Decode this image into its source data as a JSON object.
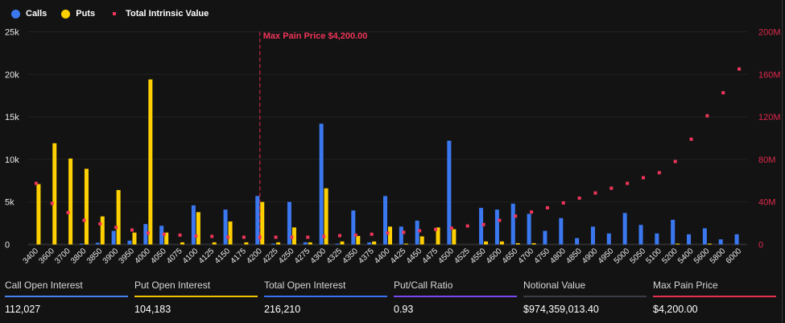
{
  "legend": {
    "calls": "Calls",
    "puts": "Puts",
    "tiv": "Total Intrinsic Value"
  },
  "colors": {
    "calls": "#3b78f0",
    "puts": "#ffd000",
    "tiv": "#ee3558",
    "grid": "#222222",
    "background": "#131313"
  },
  "chart_data": {
    "type": "bar",
    "categories": [
      "3400",
      "3600",
      "3700",
      "3800",
      "3850",
      "3900",
      "3950",
      "4000",
      "4050",
      "4075",
      "4100",
      "4125",
      "4150",
      "4175",
      "4200",
      "4225",
      "4250",
      "4275",
      "4300",
      "4325",
      "4350",
      "4375",
      "4400",
      "4425",
      "4450",
      "4475",
      "4500",
      "4525",
      "4550",
      "4600",
      "4650",
      "4700",
      "4750",
      "4800",
      "4850",
      "4900",
      "4950",
      "5000",
      "5050",
      "5100",
      "5200",
      "5400",
      "5600",
      "5800",
      "6000"
    ],
    "series": [
      {
        "name": "Calls",
        "axis": "left",
        "values": [
          0,
          0,
          0,
          0.1,
          0.2,
          1.6,
          0.45,
          2.4,
          2.2,
          0,
          4.6,
          0,
          4.1,
          0,
          5.7,
          0.1,
          5.0,
          0.25,
          14.2,
          0.1,
          4.0,
          0.25,
          5.7,
          2.1,
          2.8,
          0,
          12.2,
          0,
          4.3,
          4.1,
          4.8,
          3.6,
          1.6,
          3.1,
          0.75,
          2.1,
          1.3,
          3.7,
          2.3,
          1.3,
          2.9,
          1.2,
          1.9,
          0.6,
          1.2
        ]
      },
      {
        "name": "Puts",
        "axis": "left",
        "values": [
          7.1,
          11.9,
          10.1,
          8.9,
          3.3,
          6.4,
          1.4,
          19.4,
          1.4,
          0.25,
          3.8,
          0.25,
          2.7,
          0.25,
          5.0,
          0.25,
          2.0,
          0.25,
          6.6,
          0.35,
          1.0,
          0.35,
          2.1,
          0.1,
          0.95,
          2.0,
          1.8,
          0,
          0.35,
          0.35,
          0.15,
          0.15,
          0,
          0,
          0,
          0,
          0,
          0,
          0,
          0,
          0.1,
          0,
          0.1,
          0,
          0
        ]
      },
      {
        "name": "Total Intrinsic Value",
        "type": "scatter",
        "axis": "right",
        "values": [
          57.5,
          38.6,
          30,
          22.7,
          19.4,
          16,
          13.6,
          10.8,
          9.6,
          8.8,
          8,
          7.6,
          6.8,
          6.8,
          6.8,
          6.8,
          6.8,
          6.8,
          7.6,
          8.3,
          8.8,
          9.6,
          10.8,
          11.4,
          12.9,
          14.1,
          15.4,
          17.4,
          18.7,
          22.7,
          26.7,
          30.5,
          34.5,
          39.1,
          43.6,
          48.4,
          52.9,
          57.5,
          62.8,
          67.5,
          78,
          99,
          121,
          142.7,
          165
        ]
      }
    ],
    "left_axis": {
      "range": [
        0,
        25
      ],
      "unit": "k",
      "ticks": [
        "0",
        "5k",
        "10k",
        "15k",
        "20k",
        "25k"
      ]
    },
    "right_axis": {
      "range": [
        0,
        200
      ],
      "unit": "M",
      "ticks": [
        "0",
        "40M",
        "80M",
        "120M",
        "160M",
        "200M"
      ]
    },
    "grid": true,
    "legend_position": "top-left",
    "annotation": {
      "category": "4200",
      "label": "Max Pain Price $4,200.00"
    }
  },
  "stats": [
    {
      "label": "Call Open Interest",
      "value": "112,027",
      "color": "#4a7ff0"
    },
    {
      "label": "Put Open Interest",
      "value": "104,183",
      "color": "#f2c200"
    },
    {
      "label": "Total Open Interest",
      "value": "216,210",
      "color": "#3a6ff0"
    },
    {
      "label": "Put/Call Ratio",
      "value": "0.93",
      "color": "#7a48f0"
    },
    {
      "label": "Notional Value",
      "value": "$974,359,013.40",
      "color": "#3a3d45"
    },
    {
      "label": "Max Pain Price",
      "value": "$4,200.00",
      "color": "#e8314f"
    }
  ]
}
